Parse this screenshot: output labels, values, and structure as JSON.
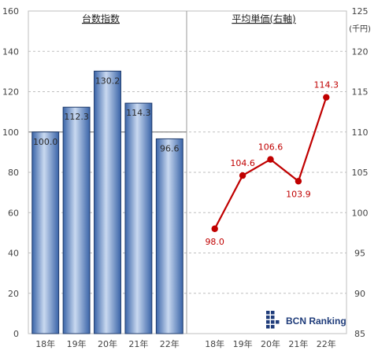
{
  "chart_data": [
    {
      "type": "bar",
      "title": "台数指数",
      "categories": [
        "18年",
        "19年",
        "20年",
        "21年",
        "22年"
      ],
      "values": [
        100.0,
        112.3,
        130.2,
        114.3,
        96.6
      ],
      "value_labels": [
        "100.0",
        "112.3",
        "130.2",
        "114.3",
        "96.6"
      ],
      "ylim": [
        0,
        160
      ],
      "yticks": [
        "0",
        "20",
        "40",
        "60",
        "80",
        "100",
        "120",
        "140",
        "160"
      ],
      "grid": true,
      "bar_color": "#5d86c4",
      "reference_line": 100
    },
    {
      "type": "line",
      "title": "平均単価(右軸)",
      "categories": [
        "18年",
        "19年",
        "20年",
        "21年",
        "22年"
      ],
      "values": [
        98.0,
        104.6,
        106.6,
        103.9,
        114.3
      ],
      "value_labels": [
        "98.0",
        "104.6",
        "106.6",
        "103.9",
        "114.3"
      ],
      "ylim": [
        85,
        125
      ],
      "yticks": [
        "85",
        "90",
        "95",
        "100",
        "105",
        "110",
        "115",
        "120",
        "125"
      ],
      "ylabel": "(千円)",
      "grid": true,
      "line_color": "#c00000"
    }
  ],
  "logo": {
    "text": "BCN Ranking",
    "color": "#1f3c7a"
  }
}
